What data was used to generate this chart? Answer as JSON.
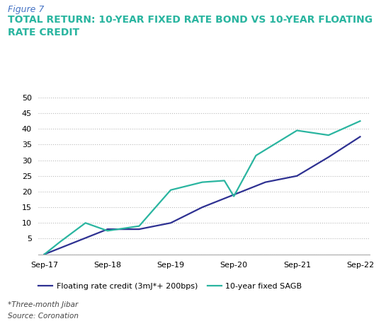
{
  "figure_label": "Figure 7",
  "title_line1": "TOTAL RETURN: 10-YEAR FIXED RATE BOND VS 10-YEAR FLOATING",
  "title_line2": "RATE CREDIT",
  "background_color": "#ffffff",
  "floating_color": "#2e3192",
  "fixed_color": "#2ab5a0",
  "floating_label": "Floating rate credit (3mJ*+ 200bps)",
  "fixed_label": "10-year fixed SAGB",
  "footnote1": "*Three-month Jibar",
  "footnote2": "Source: Coronation",
  "x_labels": [
    "Sep-17",
    "Sep-18",
    "Sep-19",
    "Sep-20",
    "Sep-21",
    "Sep-22"
  ],
  "ylim": [
    0,
    52
  ],
  "yticks": [
    0,
    5,
    10,
    15,
    20,
    25,
    30,
    35,
    40,
    45,
    50
  ],
  "floating_x": [
    0,
    0.5,
    1.0,
    1.5,
    2.0,
    2.5,
    3.0,
    3.5,
    4.0,
    4.5,
    5.0
  ],
  "floating_y": [
    0,
    4.0,
    8.0,
    8.0,
    10.0,
    15.0,
    19.0,
    23.0,
    25.0,
    31.0,
    37.5
  ],
  "fixed_x": [
    0,
    0.25,
    0.65,
    1.0,
    1.5,
    2.0,
    2.5,
    2.85,
    3.0,
    3.35,
    4.0,
    4.5,
    5.0
  ],
  "fixed_y": [
    0,
    4.0,
    10.0,
    7.5,
    9.0,
    20.5,
    23.0,
    23.5,
    18.5,
    31.5,
    39.5,
    38.0,
    42.5
  ]
}
